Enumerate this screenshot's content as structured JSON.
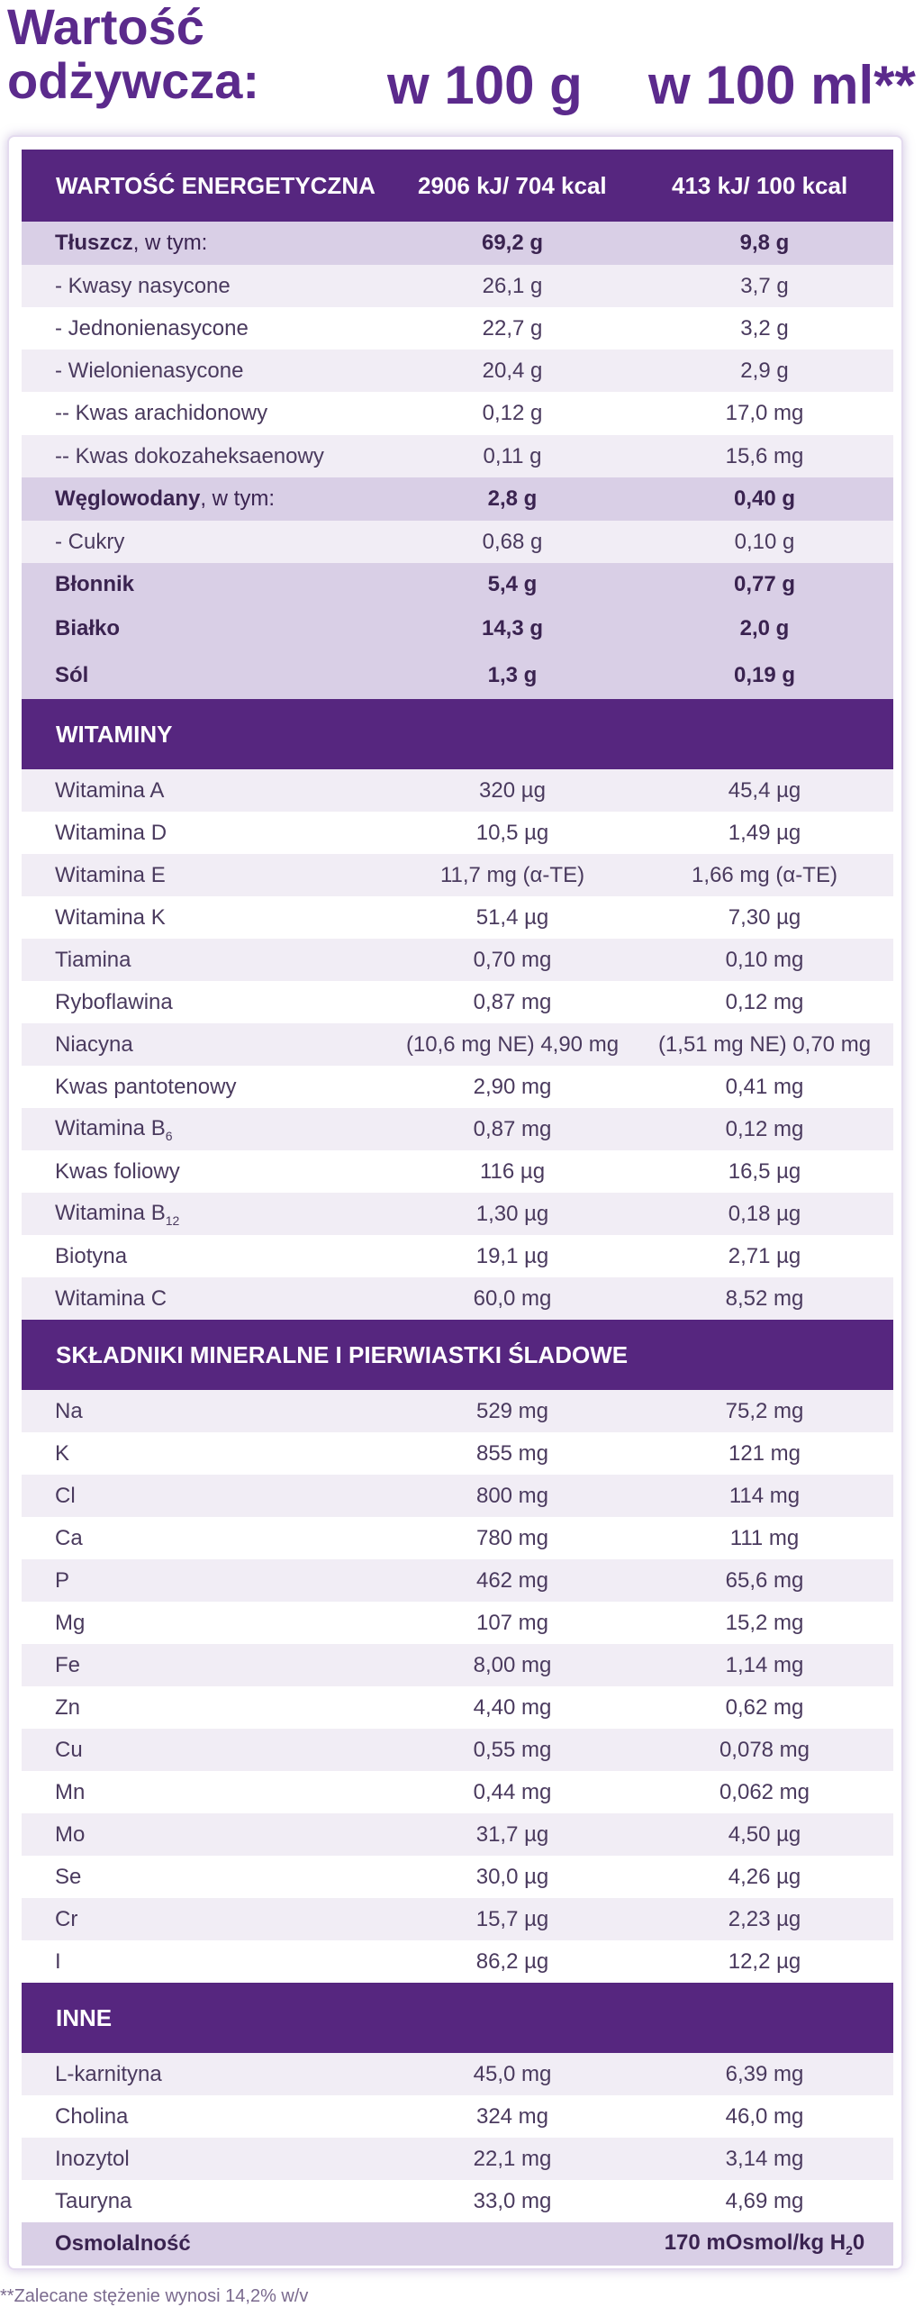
{
  "header": {
    "title_line1": "Wartość",
    "title_line2": "odżywcza:",
    "col1": "w 100 g",
    "col2": "w 100 ml**"
  },
  "energy": {
    "label": "WARTOŚĆ ENERGETYCZNA",
    "v1": "2906 kJ/ 704 kcal",
    "v2": "413 kJ/ 100 kcal"
  },
  "macros": [
    {
      "label_bold": "Tłuszcz",
      "label_rest": ", w tym:",
      "v1": "69,2 g",
      "v2": "9,8 g",
      "style": "tint bold"
    },
    {
      "label": "- Kwasy nasycone",
      "v1": "26,1 g",
      "v2": "3,7 g",
      "style": "lt"
    },
    {
      "label": "- Jednonienasycone",
      "v1": "22,7 g",
      "v2": "3,2 g",
      "style": "wh"
    },
    {
      "label": "- Wielonienasycone",
      "v1": "20,4 g",
      "v2": "2,9 g",
      "style": "lt"
    },
    {
      "label": "-- Kwas arachidonowy",
      "v1": "0,12 g",
      "v2": "17,0 mg",
      "style": "wh"
    },
    {
      "label": "-- Kwas dokozaheksaenowy",
      "v1": "0,11 g",
      "v2": "15,6 mg",
      "style": "lt"
    },
    {
      "label_bold": "Węglowodany",
      "label_rest": ", w tym:",
      "v1": "2,8 g",
      "v2": "0,40 g",
      "style": "tint bold"
    },
    {
      "label": "- Cukry",
      "v1": "0,68 g",
      "v2": "0,10 g",
      "style": "lt"
    },
    {
      "label_bold": "Błonnik",
      "label_rest": "",
      "v1": "5,4 g",
      "v2": "0,77 g",
      "style": "tint bold"
    },
    {
      "label_bold": "Białko",
      "label_rest": "",
      "v1": "14,3 g",
      "v2": "2,0 g",
      "style": "tint bold"
    },
    {
      "label_bold": "Sól",
      "label_rest": "",
      "v1": "1,3 g",
      "v2": "0,19 g",
      "style": "tint bold"
    }
  ],
  "vitamins_title": "WITAMINY",
  "vitamins": [
    {
      "label": "Witamina A",
      "v1": "320 µg",
      "v2": "45,4 µg"
    },
    {
      "label": "Witamina D",
      "v1": "10,5 µg",
      "v2": "1,49 µg"
    },
    {
      "label": "Witamina E",
      "v1": "11,7 mg (α-TE)",
      "v2": "1,66 mg (α-TE)"
    },
    {
      "label": "Witamina K",
      "v1": "51,4 µg",
      "v2": "7,30 µg"
    },
    {
      "label": "Tiamina",
      "v1": "0,70 mg",
      "v2": "0,10 mg"
    },
    {
      "label": "Ryboflawina",
      "v1": "0,87 mg",
      "v2": "0,12 mg"
    },
    {
      "label": "Niacyna",
      "v1": "(10,6 mg NE) 4,90 mg",
      "v2": "(1,51 mg NE) 0,70 mg"
    },
    {
      "label": "Kwas pantotenowy",
      "v1": "2,90 mg",
      "v2": "0,41 mg"
    },
    {
      "label": "Witamina B",
      "sub": "6",
      "v1": "0,87 mg",
      "v2": "0,12 mg"
    },
    {
      "label": "Kwas foliowy",
      "v1": "116 µg",
      "v2": "16,5 µg"
    },
    {
      "label": "Witamina B",
      "sub": "12",
      "v1": "1,30 µg",
      "v2": "0,18 µg"
    },
    {
      "label": "Biotyna",
      "v1": "19,1 µg",
      "v2": "2,71 µg"
    },
    {
      "label": "Witamina C",
      "v1": "60,0 mg",
      "v2": "8,52 mg"
    }
  ],
  "minerals_title": "SKŁADNIKI MINERALNE I PIERWIASTKI ŚLADOWE",
  "minerals": [
    {
      "label": "Na",
      "v1": "529 mg",
      "v2": "75,2 mg"
    },
    {
      "label": "K",
      "v1": "855 mg",
      "v2": "121 mg"
    },
    {
      "label": "Cl",
      "v1": "800 mg",
      "v2": "114 mg"
    },
    {
      "label": "Ca",
      "v1": "780 mg",
      "v2": "111 mg"
    },
    {
      "label": "P",
      "v1": "462 mg",
      "v2": "65,6 mg"
    },
    {
      "label": "Mg",
      "v1": "107 mg",
      "v2": "15,2 mg"
    },
    {
      "label": "Fe",
      "v1": "8,00 mg",
      "v2": "1,14 mg"
    },
    {
      "label": "Zn",
      "v1": "4,40 mg",
      "v2": "0,62 mg"
    },
    {
      "label": "Cu",
      "v1": "0,55 mg",
      "v2": "0,078 mg"
    },
    {
      "label": "Mn",
      "v1": "0,44 mg",
      "v2": "0,062 mg"
    },
    {
      "label": "Mo",
      "v1": "31,7 µg",
      "v2": "4,50 µg"
    },
    {
      "label": "Se",
      "v1": "30,0 µg",
      "v2": "4,26 µg"
    },
    {
      "label": "Cr",
      "v1": "15,7 µg",
      "v2": "2,23 µg"
    },
    {
      "label": "I",
      "v1": "86,2 µg",
      "v2": "12,2 µg"
    }
  ],
  "other_title": "INNE",
  "other": [
    {
      "label": "L-karnityna",
      "v1": "45,0 mg",
      "v2": "6,39 mg"
    },
    {
      "label": "Cholina",
      "v1": "324 mg",
      "v2": "46,0 mg"
    },
    {
      "label": "Inozytol",
      "v1": "22,1 mg",
      "v2": "3,14 mg"
    },
    {
      "label": "Tauryna",
      "v1": "33,0 mg",
      "v2": "4,69 mg"
    }
  ],
  "osmolality": {
    "label": "Osmolalność",
    "v1": "",
    "v2_main": "170 mOsmol/kg H",
    "v2_sub": "2",
    "v2_end": "0"
  },
  "footnote": "**Zalecane stężenie wynosi 14,2% w/v",
  "colors": {
    "brand_purple": "#56267f",
    "row_tint": "#d9cfe6",
    "row_light": "#f1edf5",
    "title_purple": "#5b2a8c"
  }
}
